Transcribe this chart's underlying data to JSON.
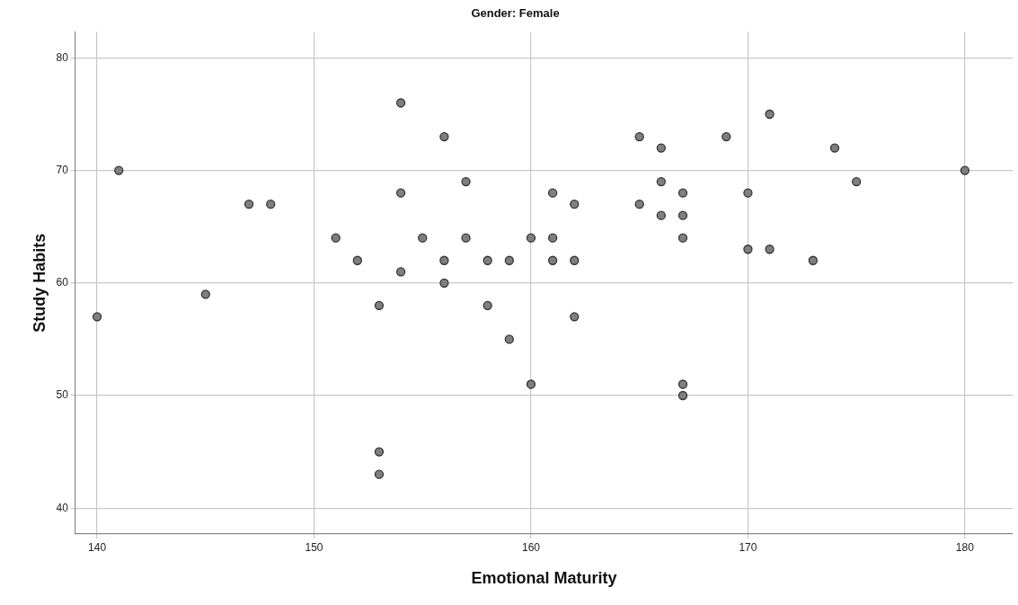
{
  "chart_data": {
    "type": "scatter",
    "title": "Gender: Female",
    "xlabel": "Emotional Maturity",
    "ylabel": "Study Habits",
    "x": [
      140,
      141,
      145,
      147,
      148,
      151,
      152,
      153,
      153,
      153,
      154,
      154,
      154,
      155,
      156,
      156,
      156,
      157,
      157,
      158,
      158,
      159,
      159,
      160,
      160,
      161,
      161,
      161,
      162,
      162,
      162,
      165,
      165,
      166,
      166,
      166,
      167,
      167,
      167,
      167,
      167,
      169,
      170,
      170,
      171,
      171,
      173,
      174,
      175,
      180
    ],
    "series": [
      {
        "color": "#7f7f7f",
        "values": [
          57,
          70,
          59,
          67,
          67,
          64,
          62,
          58,
          45,
          43,
          76,
          68,
          61,
          64,
          73,
          62,
          60,
          69,
          64,
          62,
          58,
          62,
          55,
          64,
          51,
          68,
          64,
          62,
          67,
          62,
          57,
          73,
          67,
          72,
          69,
          66,
          68,
          66,
          64,
          51,
          50,
          73,
          68,
          63,
          75,
          63,
          62,
          72,
          69,
          70
        ]
      }
    ],
    "xlim": [
      139,
      182.2
    ],
    "xticks": [
      140,
      150,
      160,
      170,
      180
    ],
    "ylim": [
      37.7,
      82.3
    ],
    "yticks": [
      40,
      50,
      60,
      70,
      80
    ],
    "grid": true,
    "legend": false,
    "marker": "circle"
  }
}
